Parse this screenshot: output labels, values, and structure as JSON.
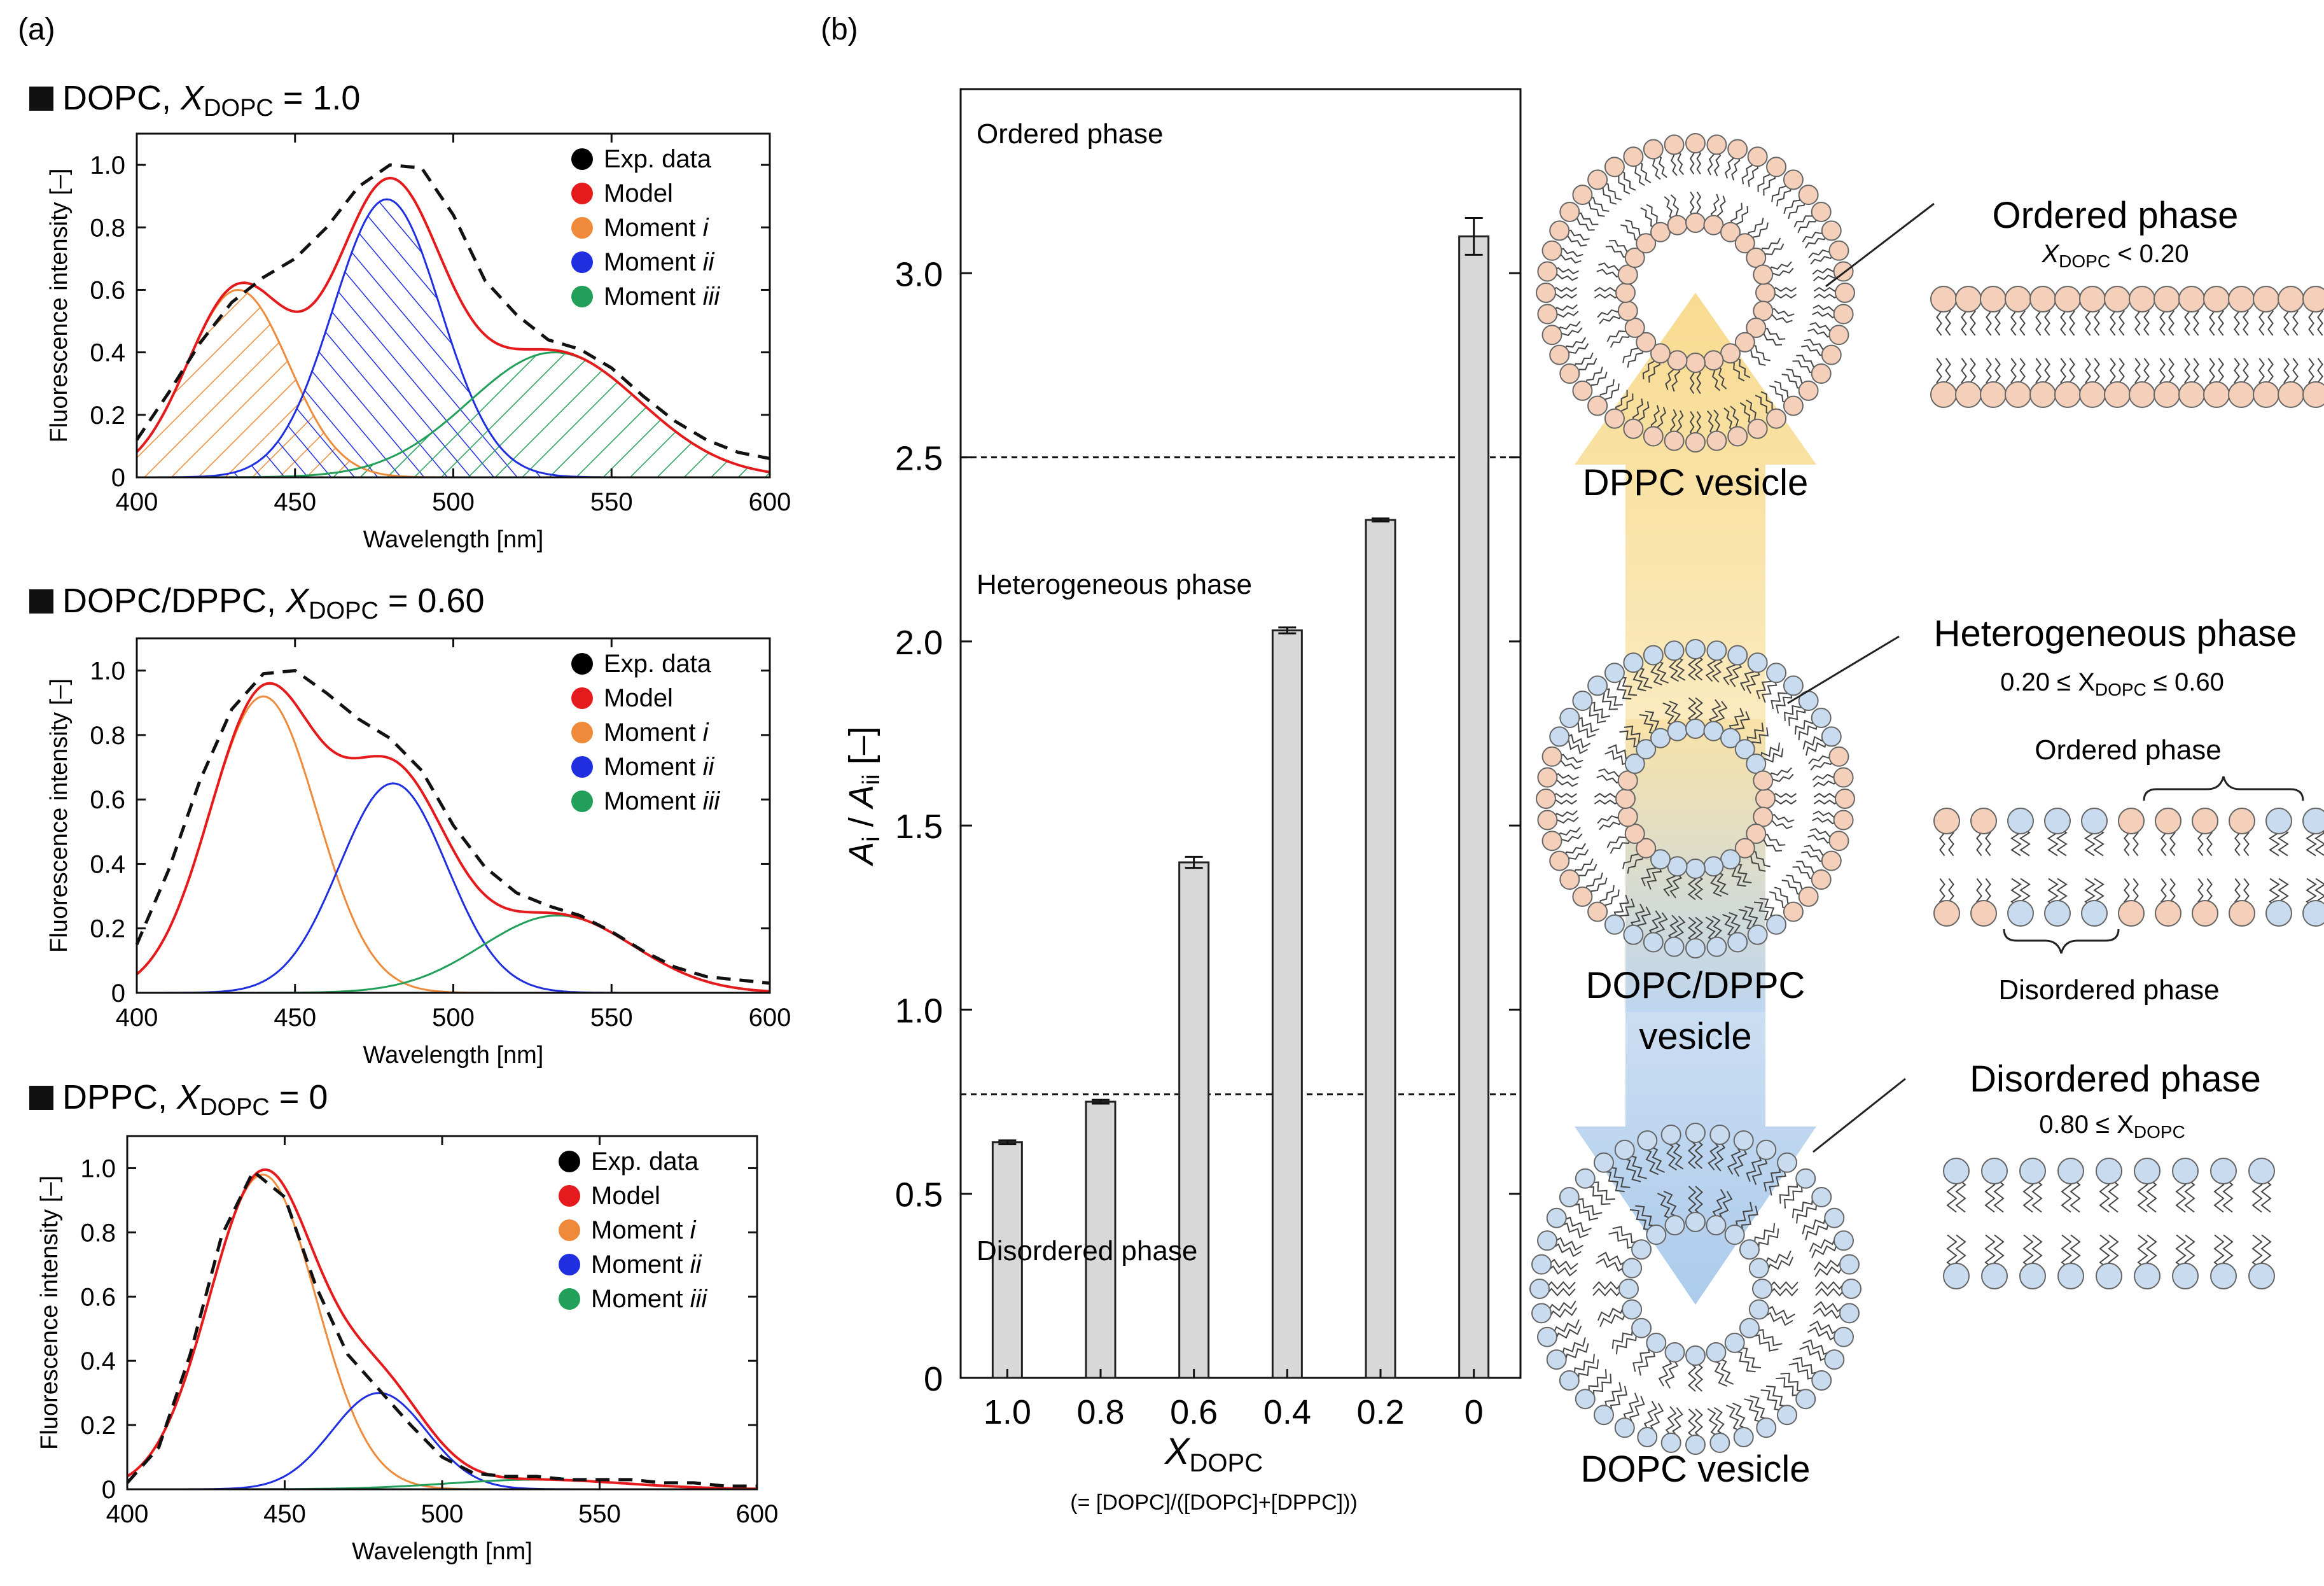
{
  "panel_a": {
    "label": "(a)",
    "x_axis_label": "Wavelength [nm]",
    "y_axis_label": "Fluorescence intensity [–]",
    "legend": [
      "Exp. data",
      "Model",
      "Moment i",
      "Moment ii",
      "Moment iii"
    ],
    "legend_colors": [
      "#000000",
      "#e41a1c",
      "#ee8a3a",
      "#1f2fe0",
      "#22a05a"
    ]
  },
  "panel_b": {
    "label": "(b)",
    "phases": {
      "ordered": "Ordered phase",
      "heterogeneous": "Heterogeneous phase",
      "disordered": "Disordered phase"
    },
    "vesicles": {
      "dppc": "DPPC vesicle",
      "mix_line1": "DOPC/DPPC",
      "mix_line2": "vesicle",
      "dopc": "DOPC vesicle"
    },
    "insets": {
      "ordered_title": "Ordered phase",
      "ordered_cond": "X",
      "ordered_cond_sub": "DOPC",
      "ordered_cond_rest": " < 0.20",
      "hetero_title": "Heterogeneous phase",
      "hetero_cond_pre": "0.20 ≤ X",
      "hetero_cond_sub": "DOPC",
      "hetero_cond_rest": " ≤ 0.60",
      "hetero_ordered": "Ordered phase",
      "hetero_disordered": "Disordered phase",
      "disordered_title": "Disordered phase",
      "disordered_cond_pre": "0.80 ≤ X",
      "disordered_cond_sub": "DOPC"
    },
    "x_axis_sub_caption": "(= [DOPC]/([DOPC]+[DPPC]))",
    "colors": {
      "dppc_head": "#f4cfb9",
      "dopc_head": "#c9dcef",
      "arrow_up": "#f7d98a",
      "arrow_down": "#a8c8ea",
      "bar": "#d8d8d8"
    }
  },
  "chart_data": [
    {
      "type": "line",
      "title": "DOPC, X_DOPC = 1.0",
      "title_prefix": "DOPC, ",
      "x_symbol": "X",
      "x_sub": "DOPC",
      "title_suffix": " = 1.0",
      "hatched": true,
      "xlabel": "Wavelength [nm]",
      "ylabel": "Fluorescence intensity [–]",
      "xlim": [
        400,
        600
      ],
      "ylim": [
        0,
        1.1
      ],
      "xticks": [
        400,
        450,
        500,
        550,
        600
      ],
      "yticks": [
        0,
        0.2,
        0.4,
        0.6,
        0.8,
        1.0
      ],
      "ytick_labels": [
        "0",
        "0.2",
        "0.4",
        "0.6",
        "0.8",
        "1.0"
      ],
      "components": [
        {
          "name": "Moment i",
          "center": 432,
          "sigma": 16,
          "amp": 0.6
        },
        {
          "name": "Moment ii",
          "center": 479,
          "sigma": 17,
          "amp": 0.89
        },
        {
          "name": "Moment iii",
          "center": 532,
          "sigma": 27,
          "amp": 0.4
        }
      ],
      "series": [
        {
          "name": "Exp. data",
          "x": [
            400,
            410,
            420,
            430,
            440,
            450,
            460,
            470,
            480,
            490,
            500,
            510,
            520,
            530,
            540,
            550,
            560,
            570,
            580,
            590,
            600
          ],
          "y": [
            0.12,
            0.27,
            0.43,
            0.56,
            0.64,
            0.7,
            0.8,
            0.93,
            1.0,
            0.99,
            0.84,
            0.63,
            0.52,
            0.44,
            0.41,
            0.35,
            0.26,
            0.18,
            0.12,
            0.08,
            0.06
          ]
        }
      ]
    },
    {
      "type": "line",
      "title": "DOPC/DPPC, X_DOPC = 0.60",
      "title_prefix": "DOPC/DPPC, ",
      "x_symbol": "X",
      "x_sub": "DOPC",
      "title_suffix": " = 0.60",
      "hatched": false,
      "xlabel": "Wavelength [nm]",
      "ylabel": "Fluorescence intensity [–]",
      "xlim": [
        400,
        600
      ],
      "ylim": [
        0,
        1.1
      ],
      "xticks": [
        400,
        450,
        500,
        550,
        600
      ],
      "yticks": [
        0,
        0.2,
        0.4,
        0.6,
        0.8,
        1.0
      ],
      "ytick_labels": [
        "0",
        "0.2",
        "0.4",
        "0.6",
        "0.8",
        "1.0"
      ],
      "components": [
        {
          "name": "Moment i",
          "center": 440,
          "sigma": 17,
          "amp": 0.92
        },
        {
          "name": "Moment ii",
          "center": 481,
          "sigma": 17,
          "amp": 0.65
        },
        {
          "name": "Moment iii",
          "center": 533,
          "sigma": 24,
          "amp": 0.24
        }
      ],
      "series": [
        {
          "name": "Exp. data",
          "x": [
            400,
            410,
            420,
            430,
            440,
            450,
            460,
            470,
            480,
            490,
            500,
            510,
            520,
            530,
            540,
            550,
            560,
            570,
            580,
            590,
            600
          ],
          "y": [
            0.15,
            0.38,
            0.66,
            0.88,
            0.99,
            1.0,
            0.93,
            0.85,
            0.79,
            0.69,
            0.52,
            0.39,
            0.31,
            0.27,
            0.24,
            0.19,
            0.13,
            0.08,
            0.05,
            0.04,
            0.03
          ]
        }
      ]
    },
    {
      "type": "line",
      "title": "DPPC, X_DOPC = 0",
      "title_prefix": "DPPC, ",
      "x_symbol": "X",
      "x_sub": "DOPC",
      "title_suffix": " = 0",
      "hatched": false,
      "xlabel": "Wavelength [nm]",
      "ylabel": "Fluorescence intensity [–]",
      "xlim": [
        400,
        600
      ],
      "ylim": [
        0,
        1.1
      ],
      "xticks": [
        400,
        450,
        500,
        550,
        600
      ],
      "yticks": [
        0,
        0.2,
        0.4,
        0.6,
        0.8,
        1.0
      ],
      "ytick_labels": [
        "0",
        "0.2",
        "0.4",
        "0.6",
        "0.8",
        "1.0"
      ],
      "components": [
        {
          "name": "Moment i",
          "center": 443,
          "sigma": 17,
          "amp": 0.98
        },
        {
          "name": "Moment ii",
          "center": 480,
          "sigma": 15,
          "amp": 0.3
        },
        {
          "name": "Moment iii",
          "center": 530,
          "sigma": 28,
          "amp": 0.03
        }
      ],
      "series": [
        {
          "name": "Exp. data",
          "x": [
            400,
            410,
            420,
            430,
            440,
            450,
            460,
            470,
            480,
            490,
            500,
            510,
            520,
            530,
            540,
            550,
            560,
            570,
            580,
            590,
            600
          ],
          "y": [
            0.02,
            0.13,
            0.42,
            0.79,
            0.99,
            0.91,
            0.63,
            0.42,
            0.31,
            0.2,
            0.1,
            0.05,
            0.04,
            0.04,
            0.03,
            0.03,
            0.03,
            0.02,
            0.02,
            0.01,
            0.01
          ]
        }
      ]
    },
    {
      "type": "bar",
      "categories": [
        "1.0",
        "0.8",
        "0.6",
        "0.4",
        "0.2",
        "0"
      ],
      "values": [
        0.64,
        0.75,
        1.4,
        2.03,
        2.33,
        3.1
      ],
      "errors": [
        0.005,
        0.005,
        0.015,
        0.008,
        0.004,
        0.05
      ],
      "ylim": [
        0,
        3.5
      ],
      "yticks": [
        0,
        0.5,
        1.0,
        1.5,
        2.0,
        2.5,
        3.0
      ],
      "ytick_labels": [
        "0",
        "0.5",
        "1.0",
        "1.5",
        "2.0",
        "2.5",
        "3.0"
      ],
      "thresholds": [
        2.5,
        0.77
      ],
      "ylabel": "A_i / A_ii [–]",
      "ylabel_A": "A",
      "ylabel_sub_i": "i",
      "ylabel_slash": " / ",
      "ylabel_sub_ii": "ii",
      "ylabel_rest": " [–]",
      "xlabel": "X_DOPC",
      "xlabel_symbol": "X",
      "xlabel_sub": "DOPC"
    }
  ]
}
